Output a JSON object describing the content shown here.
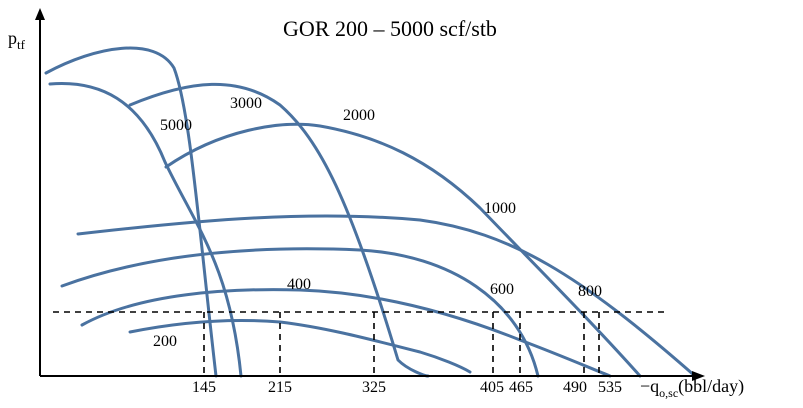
{
  "title": "GOR 200 – 5000 scf/stb",
  "y_axis": {
    "label_main": "p",
    "label_sub": "tf"
  },
  "x_axis": {
    "label_prefix": "−q",
    "label_sub": "o,sc",
    "label_units": "(bbl/day)"
  },
  "x_ticks": [
    "145",
    "215",
    "325",
    "405",
    "465",
    "490",
    "535"
  ],
  "vlp_curve_labels": [
    "5000",
    "3000",
    "2000",
    "1000",
    "800",
    "600",
    "400",
    "200"
  ],
  "colors": {
    "curve": "#4a72a0",
    "axis": "#000000",
    "dashed": "#000000"
  }
}
